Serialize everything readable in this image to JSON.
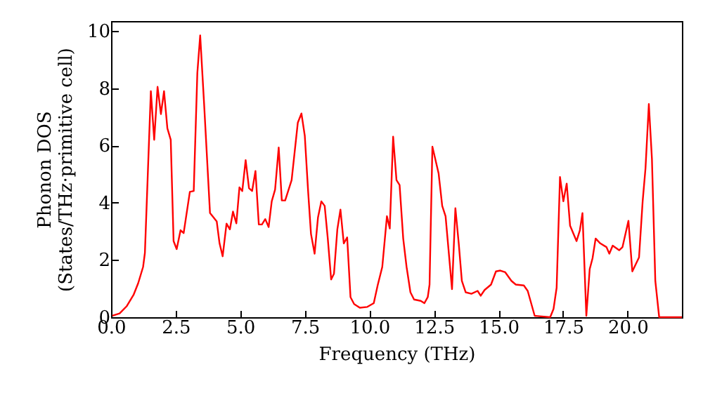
{
  "chart_data": {
    "type": "line",
    "xlabel": "Frequency (THz)",
    "ylabel": "Phonon DOS\n(States/THz·primitive cell)",
    "x": [
      0.05,
      0.33,
      0.6,
      0.87,
      1.05,
      1.24,
      1.31,
      1.54,
      1.67,
      1.8,
      1.93,
      2.05,
      2.18,
      2.31,
      2.42,
      2.54,
      2.69,
      2.81,
      3.05,
      3.2,
      3.34,
      3.45,
      3.6,
      3.83,
      4.09,
      4.2,
      4.32,
      4.47,
      4.6,
      4.72,
      4.85,
      4.97,
      5.08,
      5.21,
      5.34,
      5.46,
      5.59,
      5.72,
      5.84,
      5.97,
      6.1,
      6.22,
      6.35,
      6.49,
      6.61,
      6.74,
      6.99,
      7.23,
      7.37,
      7.5,
      7.63,
      7.74,
      7.88,
      8.01,
      8.14,
      8.27,
      8.39,
      8.52,
      8.63,
      8.76,
      8.88,
      9.01,
      9.14,
      9.27,
      9.41,
      9.63,
      9.92,
      10.17,
      10.32,
      10.5,
      10.68,
      10.79,
      10.92,
      11.05,
      11.17,
      11.31,
      11.44,
      11.59,
      11.73,
      11.99,
      12.13,
      12.26,
      12.33,
      12.44,
      12.68,
      12.82,
      12.95,
      13.2,
      13.33,
      13.46,
      13.58,
      13.73,
      13.95,
      14.19,
      14.31,
      14.46,
      14.71,
      14.9,
      15.07,
      15.26,
      15.5,
      15.67,
      15.98,
      16.13,
      16.4,
      17.0,
      17.13,
      17.25,
      17.38,
      17.51,
      17.64,
      17.77,
      18.02,
      18.15,
      18.25,
      18.4,
      18.53,
      18.64,
      18.76,
      18.94,
      19.18,
      19.29,
      19.42,
      19.67,
      19.8,
      20.03,
      20.18,
      20.44,
      20.58,
      20.69,
      20.82,
      20.94,
      21.07,
      21.22,
      22.1
    ],
    "series": [
      {
        "color": "#ff0000",
        "values": [
          0.05,
          0.13,
          0.38,
          0.78,
          1.19,
          1.76,
          2.25,
          7.9,
          6.2,
          8.05,
          7.1,
          7.9,
          6.6,
          6.2,
          2.66,
          2.38,
          3.04,
          2.94,
          4.38,
          4.41,
          8.54,
          9.85,
          7.48,
          3.64,
          3.35,
          2.58,
          2.13,
          3.27,
          3.07,
          3.69,
          3.28,
          4.54,
          4.41,
          5.49,
          4.51,
          4.41,
          5.11,
          3.24,
          3.24,
          3.43,
          3.15,
          4.05,
          4.46,
          5.93,
          4.08,
          4.08,
          4.79,
          6.8,
          7.12,
          6.34,
          4.38,
          2.91,
          2.22,
          3.48,
          4.05,
          3.89,
          2.75,
          1.32,
          1.52,
          3.07,
          3.76,
          2.58,
          2.79,
          0.7,
          0.46,
          0.33,
          0.36,
          0.49,
          1.11,
          1.76,
          3.53,
          3.1,
          6.31,
          4.79,
          4.62,
          2.75,
          1.76,
          0.87,
          0.62,
          0.57,
          0.49,
          0.7,
          1.14,
          5.96,
          5.03,
          3.89,
          3.53,
          0.98,
          3.81,
          2.58,
          1.27,
          0.87,
          0.82,
          0.92,
          0.75,
          0.95,
          1.14,
          1.6,
          1.63,
          1.57,
          1.27,
          1.14,
          1.11,
          0.92,
          0.05,
          0,
          0.29,
          1.03,
          4.9,
          4.05,
          4.67,
          3.2,
          2.66,
          3.04,
          3.64,
          0.05,
          1.68,
          2.06,
          2.75,
          2.58,
          2.45,
          2.22,
          2.5,
          2.34,
          2.45,
          3.37,
          1.6,
          2.09,
          4.05,
          5.2,
          7.45,
          5.52,
          1.27,
          0,
          0
        ]
      }
    ],
    "xlim": [
      0,
      22.1
    ],
    "ylim": [
      0,
      10.35
    ],
    "xticks": [
      {
        "value": 0,
        "label": "0.0"
      },
      {
        "value": 2.5,
        "label": "2.5"
      },
      {
        "value": 5,
        "label": "5.0"
      },
      {
        "value": 7.5,
        "label": "7.5"
      },
      {
        "value": 10,
        "label": "10.0"
      },
      {
        "value": 12.5,
        "label": "12.5"
      },
      {
        "value": 15,
        "label": "15.0"
      },
      {
        "value": 17.5,
        "label": "17.5"
      },
      {
        "value": 20,
        "label": "20.0"
      }
    ],
    "yticks": [
      0,
      2,
      4,
      6,
      8,
      10
    ],
    "grid": false,
    "marker": "none",
    "line_style": "solid"
  }
}
